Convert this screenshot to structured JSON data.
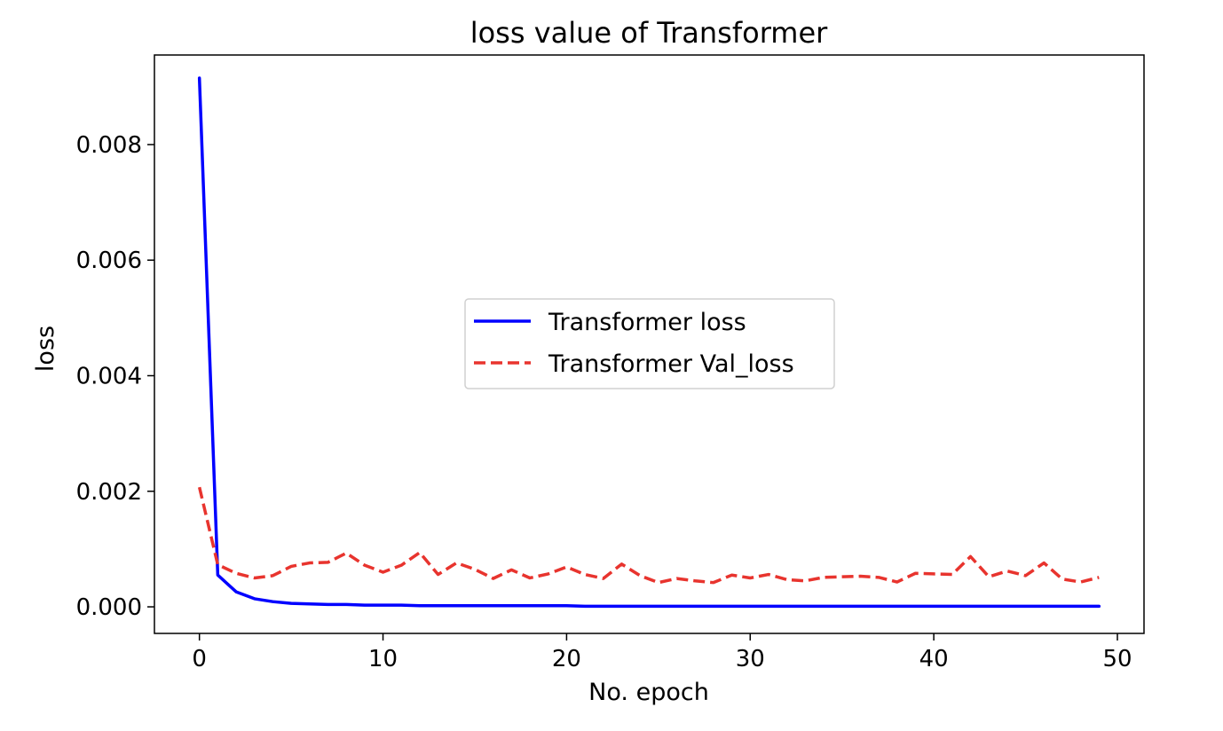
{
  "chart_data": {
    "type": "line",
    "title": "loss value of Transformer",
    "xlabel": "No. epoch",
    "ylabel": "loss",
    "xlim": [
      -2.45,
      51.45
    ],
    "ylim": [
      -0.00046,
      0.00955
    ],
    "xticks": [
      0,
      10,
      20,
      30,
      40,
      50
    ],
    "yticks": [
      0.0,
      0.002,
      0.004,
      0.006,
      0.008
    ],
    "ytick_labels": [
      "0.000",
      "0.002",
      "0.004",
      "0.006",
      "0.008"
    ],
    "grid": false,
    "legend_position": "center",
    "x": [
      0,
      1,
      2,
      3,
      4,
      5,
      6,
      7,
      8,
      9,
      10,
      11,
      12,
      13,
      14,
      15,
      16,
      17,
      18,
      19,
      20,
      21,
      22,
      23,
      24,
      25,
      26,
      27,
      28,
      29,
      30,
      31,
      32,
      33,
      34,
      35,
      36,
      37,
      38,
      39,
      40,
      41,
      42,
      43,
      44,
      45,
      46,
      47,
      48,
      49
    ],
    "series": [
      {
        "name": "Transformer loss",
        "color": "#0000ff",
        "style": "solid",
        "values": [
          0.00915,
          0.00055,
          0.00026,
          0.00014,
          9e-05,
          6e-05,
          5e-05,
          4e-05,
          4e-05,
          3e-05,
          3e-05,
          3e-05,
          2e-05,
          2e-05,
          2e-05,
          2e-05,
          2e-05,
          2e-05,
          2e-05,
          2e-05,
          2e-05,
          1e-05,
          1e-05,
          1e-05,
          1e-05,
          1e-05,
          1e-05,
          1e-05,
          1e-05,
          1e-05,
          1e-05,
          1e-05,
          1e-05,
          1e-05,
          1e-05,
          1e-05,
          1e-05,
          1e-05,
          1e-05,
          1e-05,
          1e-05,
          1e-05,
          1e-05,
          1e-05,
          1e-05,
          1e-05,
          1e-05,
          1e-05,
          1e-05,
          1e-05
        ]
      },
      {
        "name": "Transformer Val_loss",
        "color": "#e8342e",
        "style": "dashed",
        "values": [
          0.00207,
          0.00073,
          0.00058,
          0.0005,
          0.00054,
          0.0007,
          0.00076,
          0.00077,
          0.00093,
          0.00072,
          0.0006,
          0.00072,
          0.00094,
          0.00056,
          0.00076,
          0.00065,
          0.00049,
          0.00064,
          0.0005,
          0.00057,
          0.00069,
          0.00056,
          0.00049,
          0.00074,
          0.00054,
          0.00042,
          0.00049,
          0.00045,
          0.00042,
          0.00055,
          0.0005,
          0.00056,
          0.00047,
          0.00045,
          0.00051,
          0.00052,
          0.00053,
          0.00051,
          0.00043,
          0.00058,
          0.00057,
          0.00056,
          0.00087,
          0.00052,
          0.00062,
          0.00054,
          0.00076,
          0.00048,
          0.00043,
          0.00051
        ]
      }
    ]
  }
}
